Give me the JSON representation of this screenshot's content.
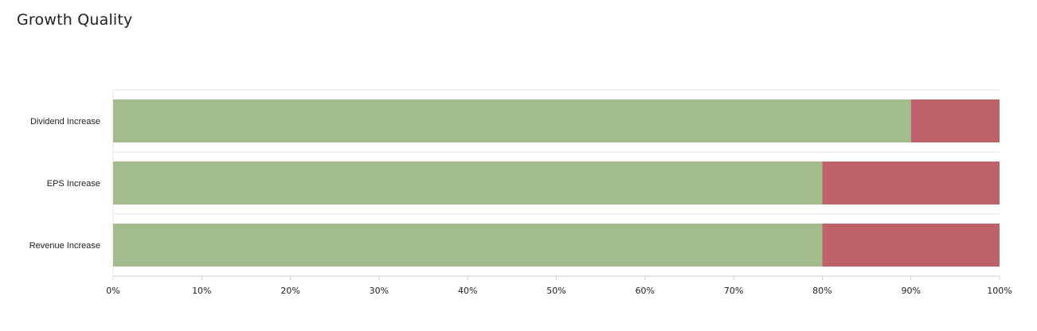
{
  "chart_data": {
    "type": "bar",
    "orientation": "horizontal",
    "stacked": true,
    "title": "Growth Quality",
    "categories": [
      "Dividend Increase",
      "EPS Increase",
      "Revenue Increase"
    ],
    "series": [
      {
        "values": [
          90,
          80,
          80
        ],
        "color": "#a3bc8c"
      },
      {
        "values": [
          10,
          20,
          20
        ],
        "color": "#bf616a"
      }
    ],
    "xlim": [
      0,
      100
    ],
    "xticks": [
      "0%",
      "10%",
      "20%",
      "30%",
      "40%",
      "50%",
      "60%",
      "70%",
      "80%",
      "90%",
      "100%"
    ],
    "grid": true
  }
}
